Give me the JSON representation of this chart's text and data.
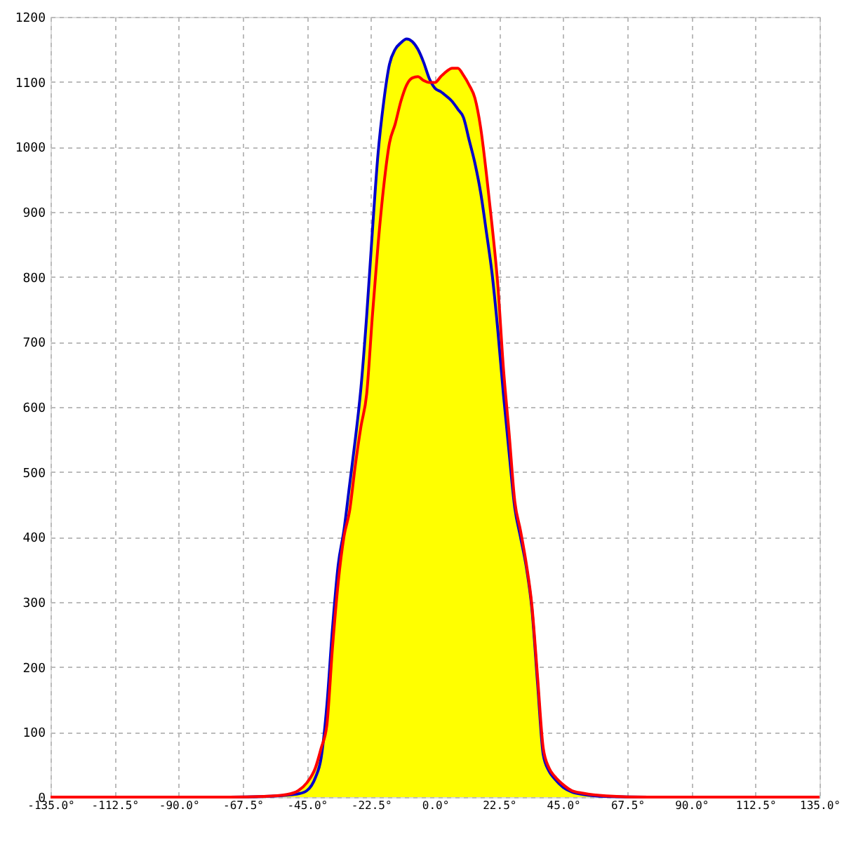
{
  "chart_data": {
    "type": "line",
    "x": [
      -135,
      -72,
      -60,
      -52,
      -48,
      -45,
      -42,
      -40,
      -38,
      -36,
      -34,
      -32,
      -30,
      -28,
      -26,
      -24,
      -22,
      -20,
      -18,
      -16,
      -14,
      -12,
      -10,
      -8,
      -6,
      -4,
      -2,
      0,
      2,
      4,
      6,
      8,
      10,
      12,
      14,
      16,
      18,
      20,
      22,
      24,
      26,
      28,
      30,
      32,
      34,
      36,
      38,
      40,
      42,
      45,
      48,
      52,
      60,
      75,
      135
    ],
    "series": [
      {
        "type": "area",
        "color": "#ffff00",
        "values": [
          0,
          0,
          1,
          4,
          10,
          22,
          45,
          75,
          140,
          260,
          357,
          410,
          480,
          550,
          630,
          740,
          870,
          990,
          1070,
          1127,
          1150,
          1160,
          1166,
          1162,
          1150,
          1130,
          1105,
          1099,
          1108,
          1116,
          1121,
          1121,
          1110,
          1095,
          1075,
          1030,
          960,
          880,
          790,
          660,
          560,
          455,
          410,
          360,
          295,
          185,
          75,
          45,
          32,
          19,
          10,
          6,
          2,
          0,
          0
        ]
      },
      {
        "type": "line",
        "color": "#0000cc",
        "values": [
          null,
          0,
          1,
          3,
          5,
          10,
          30,
          60,
          140,
          260,
          357,
          410,
          480,
          550,
          630,
          740,
          870,
          990,
          1070,
          1127,
          1150,
          1160,
          1166,
          1162,
          1150,
          1130,
          1105,
          1090,
          1085,
          1078,
          1070,
          1058,
          1045,
          1010,
          975,
          930,
          870,
          806,
          720,
          620,
          530,
          445,
          400,
          355,
          290,
          175,
          65,
          40,
          28,
          15,
          8,
          4,
          1,
          0,
          null
        ]
      },
      {
        "type": "line",
        "color": "#ff0000",
        "values": [
          0,
          0,
          1,
          4,
          10,
          22,
          45,
          75,
          110,
          230,
          330,
          400,
          440,
          510,
          570,
          620,
          740,
          850,
          940,
          1006,
          1035,
          1070,
          1095,
          1106,
          1108,
          1102,
          1099,
          1099,
          1108,
          1116,
          1121,
          1121,
          1110,
          1095,
          1075,
          1030,
          960,
          880,
          790,
          660,
          560,
          455,
          410,
          360,
          295,
          185,
          75,
          45,
          32,
          19,
          10,
          6,
          2,
          0,
          0
        ]
      }
    ],
    "xlim": [
      -135,
      135
    ],
    "xticks": [
      {
        "value": -135,
        "label": "-135.0°"
      },
      {
        "value": -112.5,
        "label": "-112.5°"
      },
      {
        "value": -90,
        "label": "-90.0°"
      },
      {
        "value": -67.5,
        "label": "-67.5°"
      },
      {
        "value": -45,
        "label": "-45.0°"
      },
      {
        "value": -22.5,
        "label": "-22.5°"
      },
      {
        "value": 0,
        "label": "0.0°"
      },
      {
        "value": 22.5,
        "label": "22.5°"
      },
      {
        "value": 45,
        "label": "45.0°"
      },
      {
        "value": 67.5,
        "label": "67.5°"
      },
      {
        "value": 90,
        "label": "90.0°"
      },
      {
        "value": 112.5,
        "label": "112.5°"
      },
      {
        "value": 135,
        "label": "135.0°"
      }
    ],
    "ylim": [
      0,
      1200
    ],
    "yticks": [
      0,
      100,
      200,
      300,
      400,
      500,
      600,
      700,
      800,
      900,
      1000,
      1100,
      1200
    ],
    "grid": true,
    "line_style": "solid"
  }
}
